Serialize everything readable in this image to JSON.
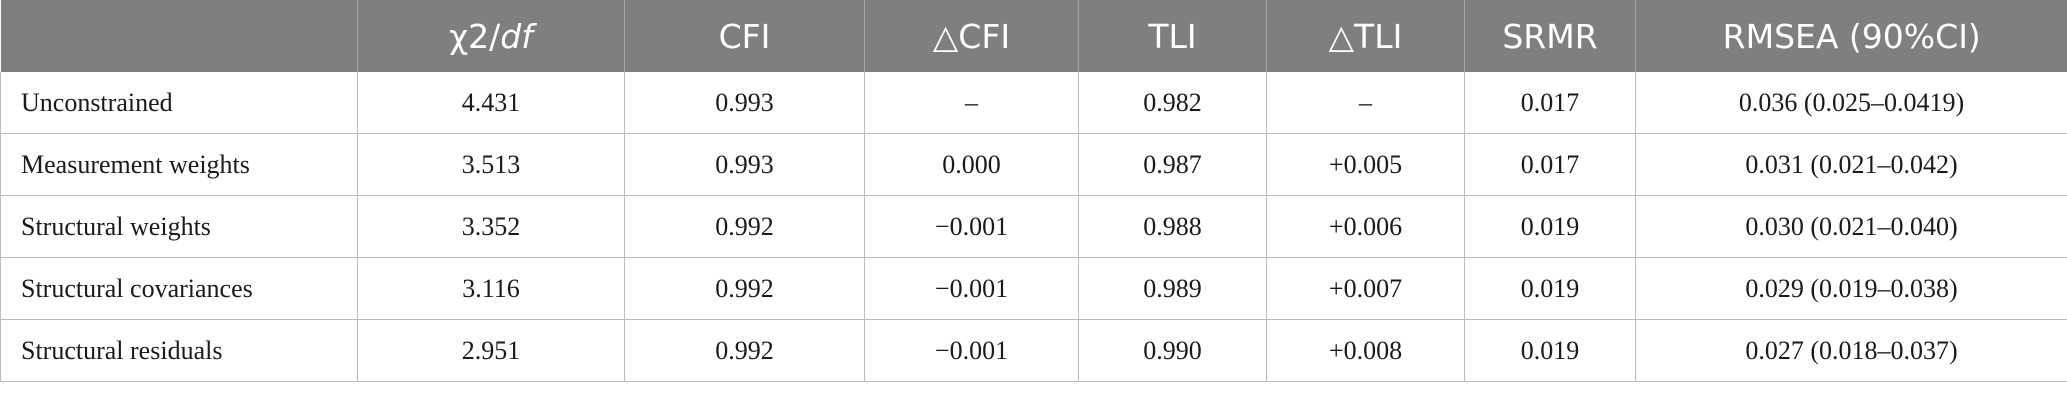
{
  "table": {
    "headers": {
      "blank": "",
      "chi_pre": "χ2/",
      "chi_df": "df",
      "cfi": "CFI",
      "dcfi": "△CFI",
      "tli": "TLI",
      "dtli": "△TLI",
      "srmr": "SRMR",
      "rmsea": "RMSEA (90%CI)"
    },
    "rows": [
      {
        "model": "Unconstrained",
        "chi2df": "4.431",
        "cfi": "0.993",
        "dcfi": "–",
        "tli": "0.982",
        "dtli": "–",
        "srmr": "0.017",
        "rmsea": "0.036 (0.025–0.0419)"
      },
      {
        "model": "Measurement weights",
        "chi2df": "3.513",
        "cfi": "0.993",
        "dcfi": "0.000",
        "tli": "0.987",
        "dtli": "+0.005",
        "srmr": "0.017",
        "rmsea": "0.031 (0.021–0.042)"
      },
      {
        "model": "Structural weights",
        "chi2df": "3.352",
        "cfi": "0.992",
        "dcfi": "−0.001",
        "tli": "0.988",
        "dtli": "+0.006",
        "srmr": "0.019",
        "rmsea": "0.030 (0.021–0.040)"
      },
      {
        "model": "Structural covariances",
        "chi2df": "3.116",
        "cfi": "0.992",
        "dcfi": "−0.001",
        "tli": "0.989",
        "dtli": "+0.007",
        "srmr": "0.019",
        "rmsea": "0.029 (0.019–0.038)"
      },
      {
        "model": "Structural residuals",
        "chi2df": "2.951",
        "cfi": "0.992",
        "dcfi": "−0.001",
        "tli": "0.990",
        "dtli": "+0.008",
        "srmr": "0.019",
        "rmsea": "0.027 (0.018–0.037)"
      }
    ]
  }
}
